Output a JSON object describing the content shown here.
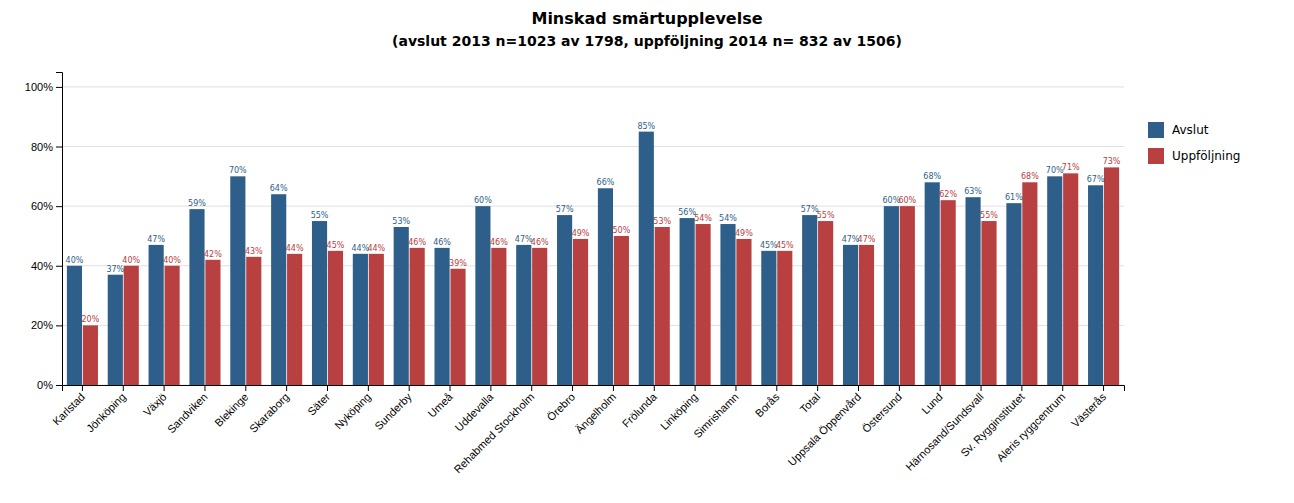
{
  "chart_data": {
    "type": "bar",
    "title": "Minskad smärtupplevelse",
    "subtitle": "(avslut 2013 n=1023 av 1798, uppföljning 2014 n= 832 av 1506)",
    "categories": [
      "Karlstad",
      "Jönköping",
      "Växjö",
      "Sandviken",
      "Blekinge",
      "Skaraborg",
      "Säter",
      "Nyköping",
      "Sunderby",
      "Umeå",
      "Uddevalla",
      "Rehabmed Stockholm",
      "Örebro",
      "Ängelholm",
      "Frölunda",
      "Linköping",
      "Simrishamn",
      "Borås",
      "Total",
      "Uppsala Öppenvård",
      "Östersund",
      "Lund",
      "Härnosand/Sundsvall",
      "Sv. Rygginstitutet",
      "Aleris ryggcentrum",
      "Västerås"
    ],
    "series": [
      {
        "name": "Avslut",
        "color": "#2E5F8A",
        "values": [
          40,
          37,
          47,
          59,
          70,
          64,
          55,
          44,
          53,
          46,
          60,
          47,
          57,
          66,
          85,
          56,
          54,
          45,
          57,
          47,
          60,
          68,
          63,
          61,
          70,
          67
        ],
        "value_labels": [
          "40%",
          "37%",
          "47%",
          "59%",
          "70%",
          "64%",
          "55%",
          "44%",
          "53%",
          "46%",
          "60%",
          "47%",
          "57%",
          "66%",
          "85%",
          "56%",
          "54%",
          "45%",
          "57%",
          "47%",
          "60%",
          "68%",
          "63%",
          "61%",
          "70%",
          "67%"
        ]
      },
      {
        "name": "Uppföljning",
        "color": "#B94040",
        "values": [
          20,
          40,
          40,
          42,
          43,
          44,
          45,
          44,
          46,
          39,
          46,
          46,
          49,
          50,
          53,
          54,
          49,
          45,
          55,
          47,
          60,
          62,
          55,
          68,
          71,
          73
        ],
        "value_labels": [
          "20%",
          "40%",
          "40%",
          "42%",
          "43%",
          "44%",
          "45%",
          "44%",
          "46%",
          "39%",
          "46%",
          "46%",
          "49%",
          "50%",
          "53%",
          "54%",
          "49%",
          "45%",
          "55%",
          "47%",
          "60%",
          "62%",
          "55%",
          "68%",
          "71%",
          "73%"
        ]
      }
    ],
    "ylim": [
      0,
      105
    ],
    "yticks": [
      {
        "value": 0,
        "label": "0%"
      },
      {
        "value": 20,
        "label": "20%"
      },
      {
        "value": 40,
        "label": "40%"
      },
      {
        "value": 60,
        "label": "60%"
      },
      {
        "value": 80,
        "label": "80%"
      },
      {
        "value": 100,
        "label": "100%"
      }
    ],
    "grid": true,
    "data_labels": true,
    "legend": "right"
  }
}
